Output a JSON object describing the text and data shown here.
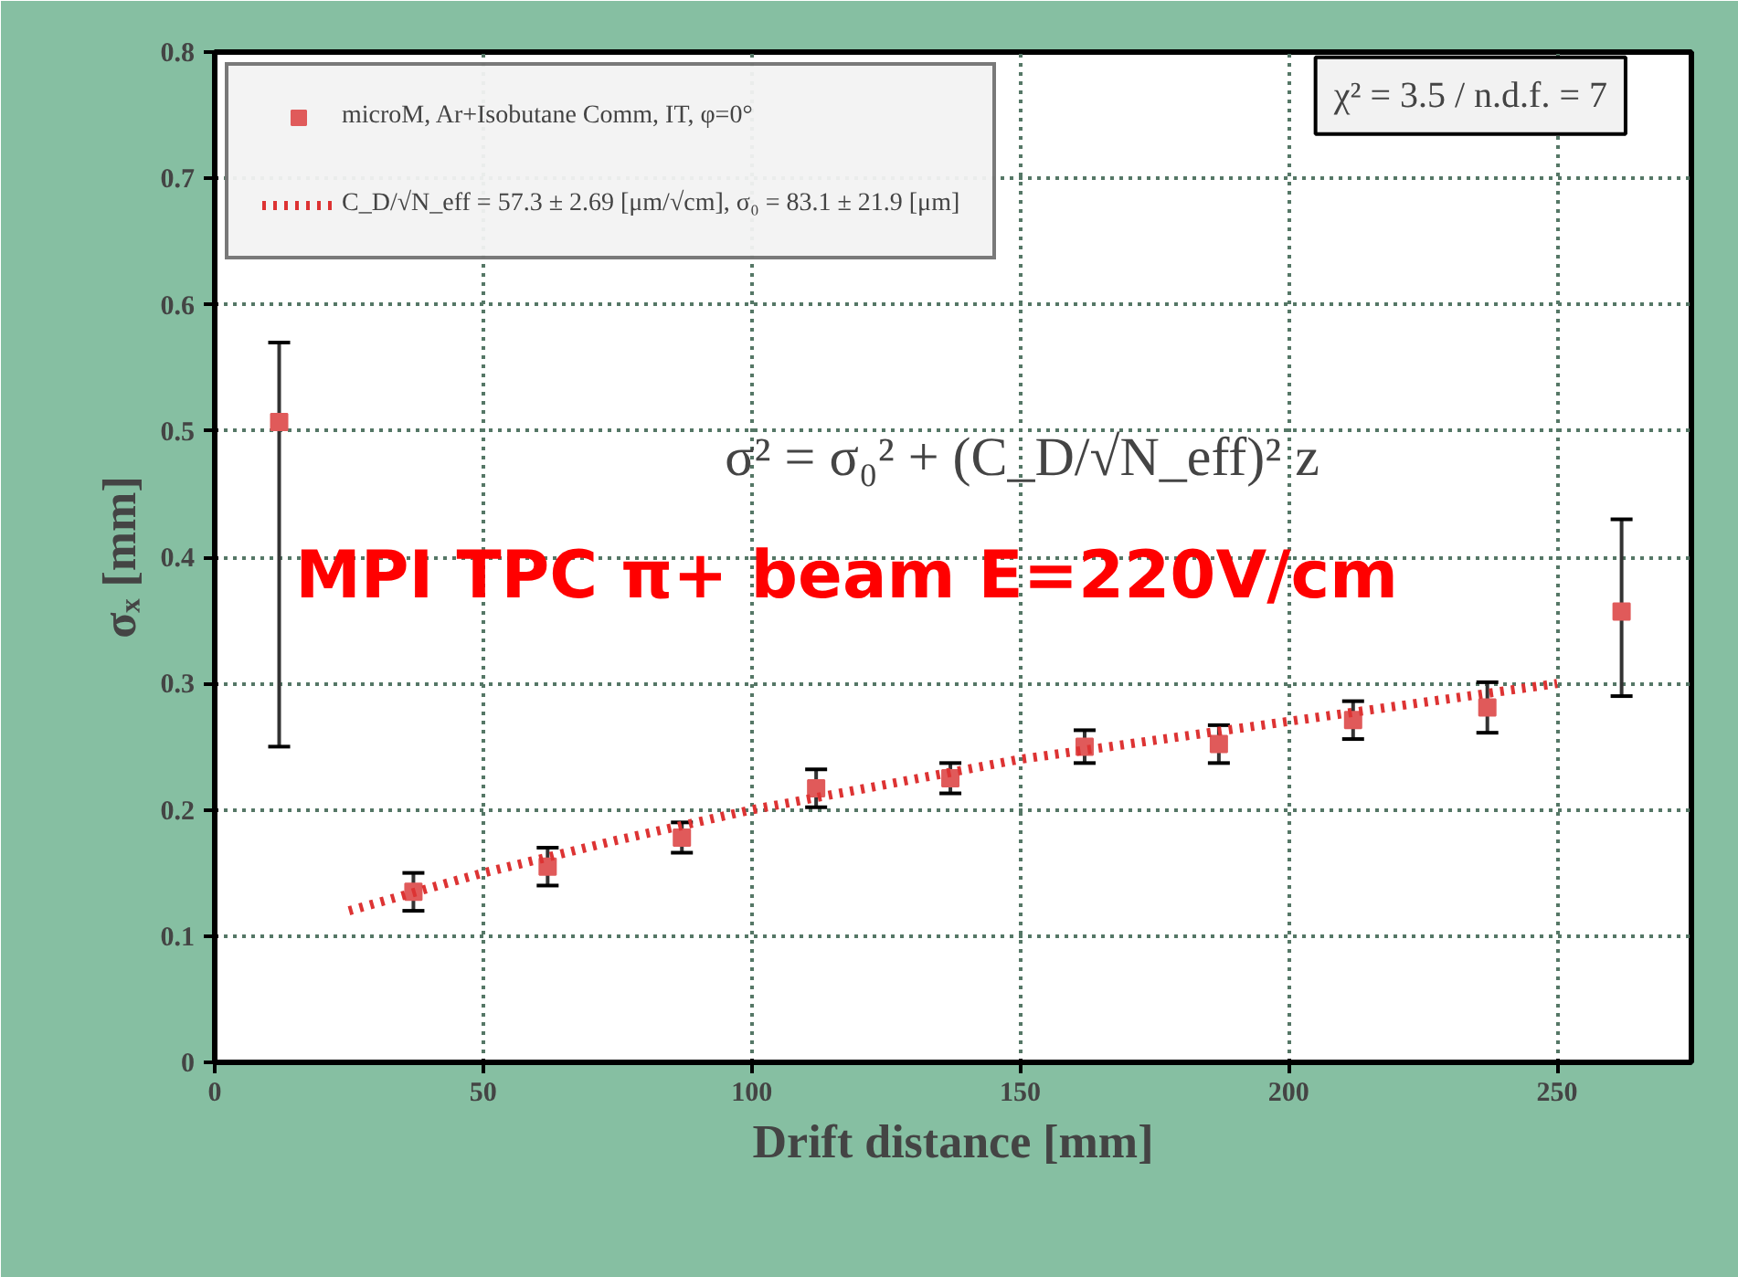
{
  "chart_data": {
    "type": "scatter",
    "xlabel": "Drift distance [mm]",
    "ylabel": "σₓ [mm]",
    "xlim": [
      0,
      275
    ],
    "ylim": [
      0,
      0.8
    ],
    "xticks": [
      0,
      50,
      100,
      150,
      200,
      250
    ],
    "yticks": [
      0,
      0.1,
      0.2,
      0.3,
      0.4,
      0.5,
      0.6,
      0.7,
      0.8
    ],
    "grid": true,
    "legend": "top left",
    "series": [
      {
        "name": "microM, Ar+Isobutane Comm, IT, φ=0°",
        "marker": "square",
        "color": "#e05a5a",
        "x": [
          12,
          37,
          62,
          87,
          112,
          137,
          162,
          187,
          212,
          237,
          262
        ],
        "values": [
          0.507,
          0.135,
          0.155,
          0.178,
          0.217,
          0.225,
          0.25,
          0.252,
          0.271,
          0.281,
          0.357
        ],
        "errors": [
          [
            0.25,
            0.57
          ],
          0.015,
          0.015,
          0.012,
          0.015,
          0.012,
          0.013,
          0.015,
          0.015,
          0.02,
          [
            0.29,
            0.43
          ]
        ]
      },
      {
        "name": "C_D/√N_eff = 57.3 ± 2.69 [μm/√cm], σ₀ = 83.1 ± 21.9 [μm]",
        "type": "line",
        "line_style": "dotted",
        "color": "#dd3333",
        "x": [
          25,
          50,
          75,
          100,
          150,
          200,
          250
        ],
        "values": [
          0.12,
          0.15,
          0.176,
          0.2,
          0.24,
          0.27,
          0.3
        ]
      }
    ],
    "annotations": [
      "χ² = 3.5 / n.d.f. = 7",
      "σ² = σ₀² + (C_D/√N_eff)² z",
      "MPI TPC π+ beam E=220V/cm"
    ]
  }
}
